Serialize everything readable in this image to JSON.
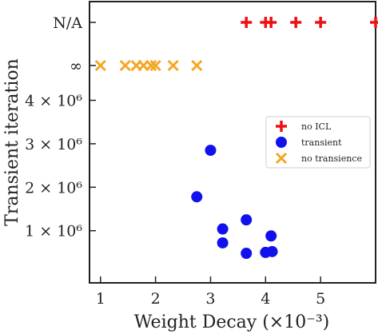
{
  "chart_data": {
    "type": "scatter",
    "xlabel": "Weight Decay (×10⁻³)",
    "ylabel": "Transient iteration",
    "xlim": [
      0.8,
      6.0
    ],
    "x_ticks": [
      {
        "value": 1,
        "label": "1"
      },
      {
        "value": 2,
        "label": "2"
      },
      {
        "value": 3,
        "label": "3"
      },
      {
        "value": 4,
        "label": "4"
      },
      {
        "value": 5,
        "label": "5"
      }
    ],
    "y_ticks": [
      {
        "value": 1000000,
        "label": "1 × 10⁶"
      },
      {
        "value": 2000000,
        "label": "2 × 10⁶"
      },
      {
        "value": 3000000,
        "label": "3 × 10⁶"
      },
      {
        "value": 4000000,
        "label": "4 × 10⁶"
      },
      {
        "value": "inf",
        "label": "∞"
      },
      {
        "value": "N/A",
        "label": "N/A"
      }
    ],
    "legend_position": "right",
    "series": [
      {
        "name": "no ICL",
        "marker": "plus",
        "color": "#ee1111",
        "points": [
          {
            "x": 3.65,
            "y": "N/A"
          },
          {
            "x": 4.0,
            "y": "N/A"
          },
          {
            "x": 4.1,
            "y": "N/A"
          },
          {
            "x": 4.55,
            "y": "N/A"
          },
          {
            "x": 5.0,
            "y": "N/A"
          },
          {
            "x": 6.0,
            "y": "N/A"
          }
        ]
      },
      {
        "name": "transient",
        "marker": "circle",
        "color": "#1111ee",
        "points": [
          {
            "x": 2.75,
            "y": 1780000
          },
          {
            "x": 3.0,
            "y": 2850000
          },
          {
            "x": 3.22,
            "y": 1040000
          },
          {
            "x": 3.22,
            "y": 720000
          },
          {
            "x": 3.65,
            "y": 1250000
          },
          {
            "x": 3.65,
            "y": 480000
          },
          {
            "x": 4.0,
            "y": 500000
          },
          {
            "x": 4.1,
            "y": 880000
          },
          {
            "x": 4.12,
            "y": 520000
          }
        ]
      },
      {
        "name": "no transience",
        "marker": "x",
        "color": "#f5a623",
        "points": [
          {
            "x": 1.0,
            "y": "inf"
          },
          {
            "x": 1.45,
            "y": "inf"
          },
          {
            "x": 1.65,
            "y": "inf"
          },
          {
            "x": 1.78,
            "y": "inf"
          },
          {
            "x": 1.92,
            "y": "inf"
          },
          {
            "x": 2.0,
            "y": "inf"
          },
          {
            "x": 2.32,
            "y": "inf"
          },
          {
            "x": 2.75,
            "y": "inf"
          }
        ]
      }
    ]
  }
}
